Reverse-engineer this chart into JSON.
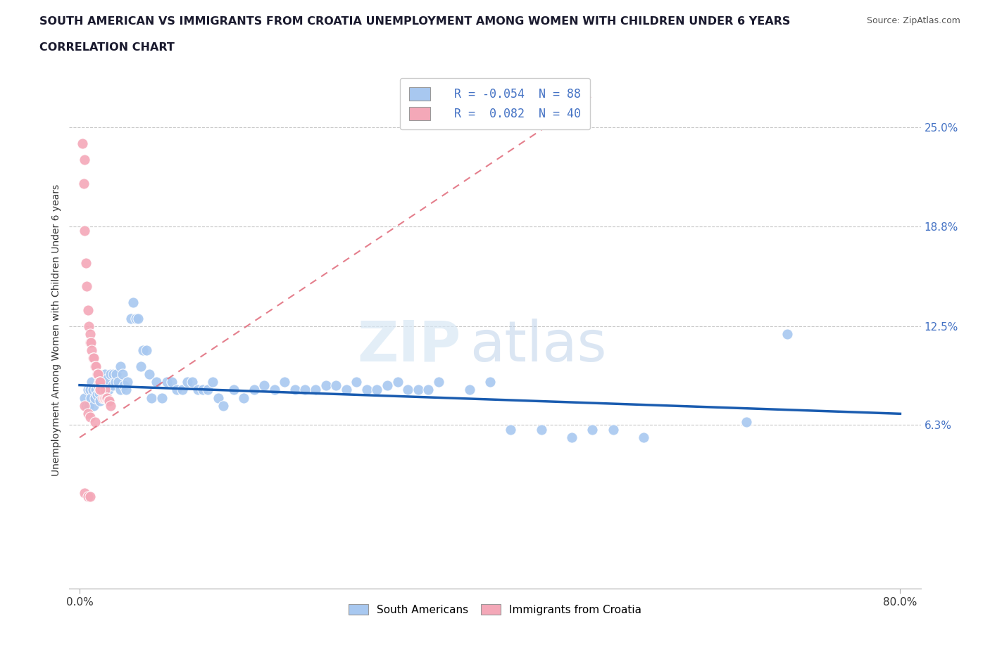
{
  "title_line1": "SOUTH AMERICAN VS IMMIGRANTS FROM CROATIA UNEMPLOYMENT AMONG WOMEN WITH CHILDREN UNDER 6 YEARS",
  "title_line2": "CORRELATION CHART",
  "source": "Source: ZipAtlas.com",
  "ylabel": "Unemployment Among Women with Children Under 6 years",
  "xlim": [
    -0.01,
    0.82
  ],
  "ylim": [
    -0.04,
    0.285
  ],
  "right_ytick_labels": [
    "6.3%",
    "12.5%",
    "18.8%",
    "25.0%"
  ],
  "right_ytick_values": [
    0.063,
    0.125,
    0.188,
    0.25
  ],
  "blue_R": -0.054,
  "blue_N": 88,
  "pink_R": 0.082,
  "pink_N": 40,
  "blue_color": "#a8c8f0",
  "pink_color": "#f4a8b8",
  "blue_line_color": "#1a5cb0",
  "pink_line_color": "#e06878",
  "legend_label_blue": "South Americans",
  "legend_label_pink": "Immigrants from Croatia",
  "blue_scatter_x": [
    0.005,
    0.007,
    0.008,
    0.009,
    0.01,
    0.011,
    0.012,
    0.013,
    0.014,
    0.015,
    0.016,
    0.017,
    0.018,
    0.019,
    0.02,
    0.02,
    0.022,
    0.023,
    0.025,
    0.025,
    0.027,
    0.028,
    0.03,
    0.032,
    0.033,
    0.035,
    0.036,
    0.038,
    0.04,
    0.04,
    0.042,
    0.043,
    0.045,
    0.047,
    0.05,
    0.052,
    0.055,
    0.057,
    0.06,
    0.062,
    0.065,
    0.068,
    0.07,
    0.075,
    0.08,
    0.085,
    0.09,
    0.095,
    0.1,
    0.105,
    0.11,
    0.115,
    0.12,
    0.125,
    0.13,
    0.135,
    0.14,
    0.15,
    0.16,
    0.17,
    0.18,
    0.19,
    0.2,
    0.21,
    0.22,
    0.23,
    0.24,
    0.25,
    0.26,
    0.27,
    0.28,
    0.29,
    0.3,
    0.31,
    0.32,
    0.33,
    0.34,
    0.35,
    0.38,
    0.4,
    0.42,
    0.45,
    0.48,
    0.5,
    0.52,
    0.55,
    0.65,
    0.69
  ],
  "blue_scatter_y": [
    0.08,
    0.075,
    0.085,
    0.075,
    0.085,
    0.08,
    0.09,
    0.085,
    0.075,
    0.08,
    0.085,
    0.082,
    0.088,
    0.083,
    0.09,
    0.078,
    0.092,
    0.088,
    0.095,
    0.082,
    0.092,
    0.085,
    0.095,
    0.088,
    0.095,
    0.09,
    0.095,
    0.09,
    0.1,
    0.085,
    0.095,
    0.088,
    0.085,
    0.09,
    0.13,
    0.14,
    0.13,
    0.13,
    0.1,
    0.11,
    0.11,
    0.095,
    0.08,
    0.09,
    0.08,
    0.09,
    0.09,
    0.085,
    0.085,
    0.09,
    0.09,
    0.085,
    0.085,
    0.085,
    0.09,
    0.08,
    0.075,
    0.085,
    0.08,
    0.085,
    0.088,
    0.085,
    0.09,
    0.085,
    0.085,
    0.085,
    0.088,
    0.088,
    0.085,
    0.09,
    0.085,
    0.085,
    0.088,
    0.09,
    0.085,
    0.085,
    0.085,
    0.09,
    0.085,
    0.09,
    0.06,
    0.06,
    0.055,
    0.06,
    0.06,
    0.055,
    0.065,
    0.12
  ],
  "pink_scatter_x": [
    0.003,
    0.004,
    0.005,
    0.005,
    0.006,
    0.007,
    0.008,
    0.009,
    0.01,
    0.01,
    0.011,
    0.012,
    0.013,
    0.014,
    0.015,
    0.016,
    0.017,
    0.018,
    0.019,
    0.02,
    0.02,
    0.021,
    0.022,
    0.023,
    0.024,
    0.025,
    0.025,
    0.026,
    0.027,
    0.028,
    0.029,
    0.03,
    0.005,
    0.008,
    0.01,
    0.015,
    0.02,
    0.005,
    0.008,
    0.01
  ],
  "pink_scatter_y": [
    0.24,
    0.215,
    0.23,
    0.185,
    0.165,
    0.15,
    0.135,
    0.125,
    0.12,
    0.115,
    0.115,
    0.11,
    0.105,
    0.105,
    0.1,
    0.1,
    0.095,
    0.095,
    0.09,
    0.09,
    0.085,
    0.085,
    0.085,
    0.08,
    0.08,
    0.08,
    0.085,
    0.08,
    0.08,
    0.078,
    0.078,
    0.075,
    0.075,
    0.07,
    0.068,
    0.065,
    0.085,
    0.02,
    0.018,
    0.018
  ],
  "blue_line_x": [
    0.0,
    0.8
  ],
  "blue_line_y": [
    0.088,
    0.07
  ],
  "pink_line_x": [
    0.0,
    0.5
  ],
  "pink_line_y": [
    0.055,
    0.27
  ]
}
